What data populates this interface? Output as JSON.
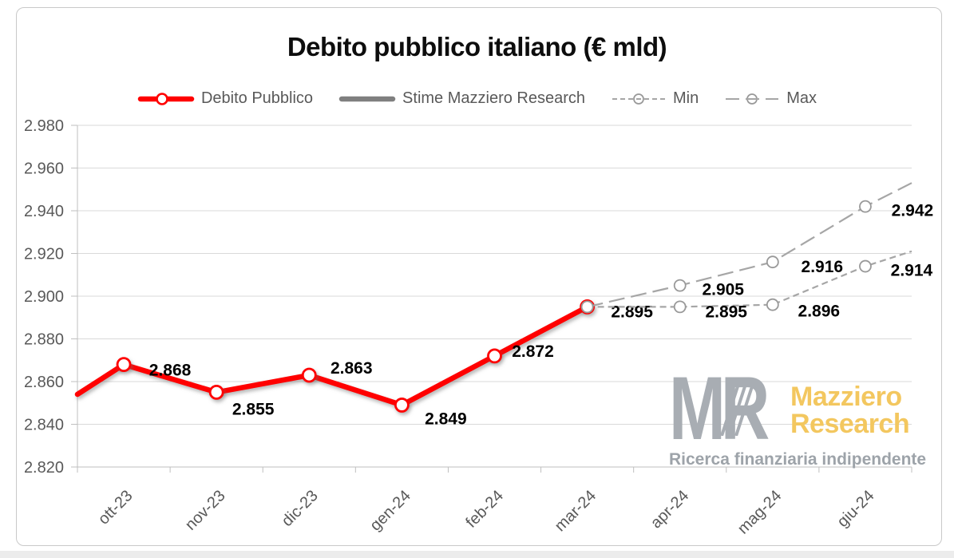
{
  "title": "Debito pubblico italiano (€ mld)",
  "legend": {
    "items": [
      {
        "label": "Debito Pubblico",
        "style": "solid-red-marker",
        "color": "#ff0000"
      },
      {
        "label": "Stime Mazziero Research",
        "style": "solid-gray",
        "color": "#7f7f7f"
      },
      {
        "label": "Min",
        "style": "short-dash-marker",
        "color": "#a6a6a6"
      },
      {
        "label": "Max",
        "style": "long-dash-marker",
        "color": "#a6a6a6"
      }
    ]
  },
  "watermark": {
    "logo": "MR",
    "brand_line1": "Mazziero",
    "brand_line2": "Research",
    "tagline": "Ricerca finanziaria indipendente",
    "brand_color": "#f3c75f",
    "logo_color": "#a8adb3",
    "tagline_color": "#9da3a9"
  },
  "chart_data": {
    "type": "line",
    "title": "Debito pubblico italiano (€ mld)",
    "xlabel": "",
    "ylabel": "",
    "grid": true,
    "legend_position": "top",
    "categories": [
      "ott-23",
      "nov-23",
      "dic-23",
      "gen-24",
      "feb-24",
      "mar-24",
      "apr-24",
      "mag-24",
      "giu-24"
    ],
    "y_axis": {
      "min": 2.82,
      "max": 2.98,
      "step": 0.02,
      "tick_labels": [
        "2.820",
        "2.840",
        "2.860",
        "2.880",
        "2.900",
        "2.920",
        "2.940",
        "2.960",
        "2.980"
      ]
    },
    "series": [
      {
        "name": "Debito Pubblico",
        "color": "#ff0000",
        "style": "solid",
        "width": 6.5,
        "shadow": true,
        "marker": "circle",
        "marker_r": 8,
        "marker_color": "#ff0000",
        "marker_w": 2.8,
        "values": [
          2.868,
          2.855,
          2.863,
          2.849,
          2.872,
          2.895,
          null,
          null,
          null
        ],
        "left_edge_value": 2.854,
        "label_class": "dlabel-strong",
        "labels": [
          {
            "i": 0,
            "text": "2.868",
            "dx": 58,
            "dy": 14
          },
          {
            "i": 1,
            "text": "2.855",
            "dx": 46,
            "dy": 28
          },
          {
            "i": 2,
            "text": "2.863",
            "dx": 53,
            "dy": -2
          },
          {
            "i": 3,
            "text": "2.849",
            "dx": 55,
            "dy": 24
          },
          {
            "i": 4,
            "text": "2.872",
            "dx": 48,
            "dy": 1
          },
          {
            "i": 5,
            "text": "2.895",
            "dx": 56,
            "dy": 13
          }
        ]
      },
      {
        "name": "Stime Mazziero Research",
        "color": "#7f7f7f",
        "style": "solid",
        "width": 6.5,
        "marker": "none",
        "values": [
          null,
          null,
          null,
          null,
          null,
          2.895,
          null,
          null,
          null
        ],
        "labels": []
      },
      {
        "name": "Min",
        "color": "#a6a6a6",
        "style": "dash",
        "width": 2.2,
        "marker": "circle",
        "marker_r": 7,
        "marker_color": "#999999",
        "marker_w": 1.8,
        "values": [
          null,
          null,
          null,
          null,
          null,
          2.895,
          2.895,
          2.896,
          2.914
        ],
        "right_edge_value": 2.921,
        "label_class": "dlabel",
        "labels": [
          {
            "i": 6,
            "text": "2.895",
            "dx": 58,
            "dy": 13
          },
          {
            "i": 7,
            "text": "2.896",
            "dx": 58,
            "dy": 15
          },
          {
            "i": 8,
            "text": "2.914",
            "dx": 58,
            "dy": 12
          }
        ]
      },
      {
        "name": "Max",
        "color": "#a6a6a6",
        "style": "longdash",
        "width": 2.2,
        "marker": "circle",
        "marker_r": 7,
        "marker_color": "#999999",
        "marker_w": 1.8,
        "values": [
          null,
          null,
          null,
          null,
          null,
          2.895,
          2.905,
          2.916,
          2.942
        ],
        "right_edge_value": 2.953,
        "label_class": "dlabel",
        "labels": [
          {
            "i": 6,
            "text": "2.905",
            "dx": 54,
            "dy": 12
          },
          {
            "i": 7,
            "text": "2.916",
            "dx": 62,
            "dy": 13
          },
          {
            "i": 8,
            "text": "2.942",
            "dx": 59,
            "dy": 12
          }
        ]
      }
    ]
  }
}
